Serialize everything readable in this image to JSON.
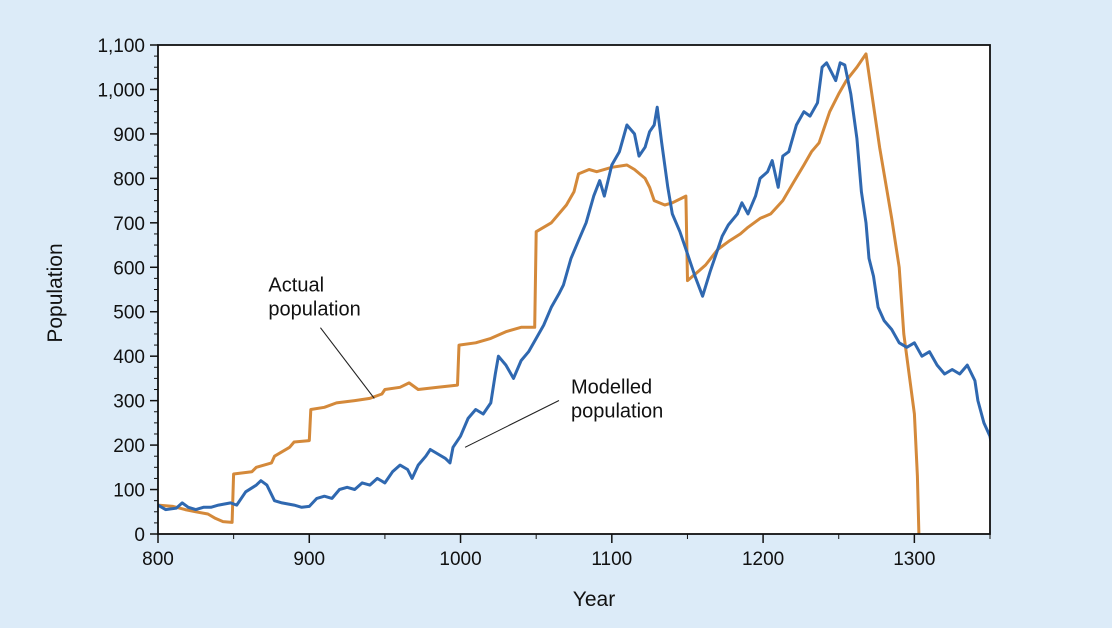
{
  "chart_data": {
    "type": "line",
    "title": "",
    "xlabel": "Year",
    "ylabel": "Population",
    "xlim": [
      800,
      1350
    ],
    "ylim": [
      0,
      1100
    ],
    "x_ticks": [
      800,
      900,
      1000,
      1100,
      1200,
      1300
    ],
    "y_ticks": [
      0,
      100,
      200,
      300,
      400,
      500,
      600,
      700,
      800,
      900,
      1000,
      1100
    ],
    "y_tick_labels": [
      "0",
      "100",
      "200",
      "300",
      "400",
      "500",
      "600",
      "700",
      "800",
      "900",
      "1,000",
      "1,100"
    ],
    "grid": false,
    "legend": "none",
    "annotations": [
      {
        "lines": [
          "Actual",
          "population"
        ],
        "series": "actual",
        "text_at": [
          873,
          545
        ],
        "points_to": [
          943,
          305
        ]
      },
      {
        "lines": [
          "Modelled",
          "population"
        ],
        "series": "modelled",
        "text_at": [
          1073,
          316
        ],
        "points_to": [
          1003,
          195
        ]
      }
    ],
    "series": [
      {
        "key": "actual",
        "color": "#d4893a",
        "points": [
          [
            800,
            65
          ],
          [
            810,
            62
          ],
          [
            818,
            55
          ],
          [
            825,
            50
          ],
          [
            833,
            45
          ],
          [
            838,
            35
          ],
          [
            843,
            28
          ],
          [
            849,
            26
          ],
          [
            850,
            135
          ],
          [
            862,
            140
          ],
          [
            865,
            150
          ],
          [
            875,
            160
          ],
          [
            877,
            175
          ],
          [
            887,
            195
          ],
          [
            890,
            207
          ],
          [
            900,
            210
          ],
          [
            901,
            280
          ],
          [
            910,
            285
          ],
          [
            918,
            295
          ],
          [
            930,
            300
          ],
          [
            940,
            305
          ],
          [
            948,
            315
          ],
          [
            950,
            325
          ],
          [
            960,
            330
          ],
          [
            966,
            340
          ],
          [
            972,
            325
          ],
          [
            985,
            330
          ],
          [
            998,
            335
          ],
          [
            999,
            425
          ],
          [
            1010,
            430
          ],
          [
            1020,
            440
          ],
          [
            1030,
            455
          ],
          [
            1040,
            465
          ],
          [
            1049,
            465
          ],
          [
            1050,
            680
          ],
          [
            1060,
            700
          ],
          [
            1070,
            740
          ],
          [
            1075,
            770
          ],
          [
            1078,
            810
          ],
          [
            1085,
            820
          ],
          [
            1090,
            815
          ],
          [
            1100,
            825
          ],
          [
            1110,
            830
          ],
          [
            1115,
            820
          ],
          [
            1122,
            800
          ],
          [
            1125,
            780
          ],
          [
            1128,
            750
          ],
          [
            1135,
            740
          ],
          [
            1140,
            745
          ],
          [
            1149,
            760
          ],
          [
            1150,
            570
          ],
          [
            1157,
            590
          ],
          [
            1162,
            605
          ],
          [
            1170,
            640
          ],
          [
            1178,
            660
          ],
          [
            1185,
            675
          ],
          [
            1190,
            690
          ],
          [
            1198,
            710
          ],
          [
            1205,
            720
          ],
          [
            1213,
            750
          ],
          [
            1220,
            790
          ],
          [
            1227,
            830
          ],
          [
            1232,
            860
          ],
          [
            1237,
            880
          ],
          [
            1244,
            950
          ],
          [
            1250,
            990
          ],
          [
            1255,
            1020
          ],
          [
            1262,
            1050
          ],
          [
            1268,
            1080
          ],
          [
            1277,
            870
          ],
          [
            1285,
            710
          ],
          [
            1290,
            600
          ],
          [
            1293,
            450
          ],
          [
            1300,
            270
          ],
          [
            1302,
            130
          ],
          [
            1303,
            0
          ]
        ]
      },
      {
        "key": "modelled",
        "color": "#2f68b0",
        "points": [
          [
            800,
            65
          ],
          [
            805,
            55
          ],
          [
            812,
            58
          ],
          [
            816,
            70
          ],
          [
            820,
            60
          ],
          [
            825,
            55
          ],
          [
            830,
            60
          ],
          [
            835,
            60
          ],
          [
            840,
            65
          ],
          [
            848,
            70
          ],
          [
            852,
            65
          ],
          [
            858,
            95
          ],
          [
            865,
            110
          ],
          [
            868,
            120
          ],
          [
            872,
            110
          ],
          [
            877,
            75
          ],
          [
            882,
            70
          ],
          [
            890,
            65
          ],
          [
            895,
            60
          ],
          [
            900,
            62
          ],
          [
            905,
            80
          ],
          [
            910,
            85
          ],
          [
            915,
            80
          ],
          [
            920,
            100
          ],
          [
            925,
            105
          ],
          [
            930,
            100
          ],
          [
            935,
            115
          ],
          [
            940,
            110
          ],
          [
            945,
            125
          ],
          [
            950,
            115
          ],
          [
            955,
            140
          ],
          [
            960,
            155
          ],
          [
            965,
            145
          ],
          [
            968,
            125
          ],
          [
            972,
            155
          ],
          [
            977,
            175
          ],
          [
            980,
            190
          ],
          [
            985,
            180
          ],
          [
            990,
            170
          ],
          [
            993,
            160
          ],
          [
            995,
            195
          ],
          [
            1000,
            220
          ],
          [
            1005,
            260
          ],
          [
            1010,
            280
          ],
          [
            1015,
            270
          ],
          [
            1020,
            295
          ],
          [
            1023,
            360
          ],
          [
            1025,
            400
          ],
          [
            1030,
            380
          ],
          [
            1035,
            350
          ],
          [
            1040,
            390
          ],
          [
            1045,
            410
          ],
          [
            1050,
            440
          ],
          [
            1055,
            470
          ],
          [
            1060,
            510
          ],
          [
            1065,
            540
          ],
          [
            1068,
            560
          ],
          [
            1073,
            620
          ],
          [
            1078,
            660
          ],
          [
            1083,
            700
          ],
          [
            1088,
            760
          ],
          [
            1092,
            795
          ],
          [
            1095,
            760
          ],
          [
            1100,
            830
          ],
          [
            1105,
            860
          ],
          [
            1110,
            920
          ],
          [
            1115,
            900
          ],
          [
            1118,
            850
          ],
          [
            1122,
            870
          ],
          [
            1125,
            905
          ],
          [
            1128,
            920
          ],
          [
            1130,
            960
          ],
          [
            1133,
            880
          ],
          [
            1137,
            780
          ],
          [
            1140,
            720
          ],
          [
            1145,
            680
          ],
          [
            1150,
            630
          ],
          [
            1155,
            580
          ],
          [
            1160,
            535
          ],
          [
            1165,
            590
          ],
          [
            1170,
            640
          ],
          [
            1173,
            670
          ],
          [
            1177,
            695
          ],
          [
            1183,
            720
          ],
          [
            1186,
            745
          ],
          [
            1190,
            720
          ],
          [
            1195,
            760
          ],
          [
            1198,
            800
          ],
          [
            1203,
            815
          ],
          [
            1206,
            840
          ],
          [
            1210,
            780
          ],
          [
            1213,
            850
          ],
          [
            1217,
            860
          ],
          [
            1222,
            920
          ],
          [
            1227,
            950
          ],
          [
            1231,
            940
          ],
          [
            1236,
            970
          ],
          [
            1239,
            1050
          ],
          [
            1242,
            1060
          ],
          [
            1245,
            1040
          ],
          [
            1248,
            1020
          ],
          [
            1251,
            1060
          ],
          [
            1254,
            1055
          ],
          [
            1258,
            990
          ],
          [
            1262,
            890
          ],
          [
            1265,
            770
          ],
          [
            1268,
            700
          ],
          [
            1270,
            620
          ],
          [
            1273,
            580
          ],
          [
            1276,
            510
          ],
          [
            1280,
            480
          ],
          [
            1285,
            460
          ],
          [
            1290,
            430
          ],
          [
            1295,
            420
          ],
          [
            1300,
            430
          ],
          [
            1305,
            400
          ],
          [
            1310,
            410
          ],
          [
            1315,
            380
          ],
          [
            1320,
            360
          ],
          [
            1325,
            370
          ],
          [
            1330,
            360
          ],
          [
            1335,
            380
          ],
          [
            1340,
            345
          ],
          [
            1342,
            300
          ],
          [
            1346,
            250
          ],
          [
            1350,
            220
          ],
          [
            1352,
            180
          ],
          [
            1355,
            200
          ]
        ]
      }
    ]
  }
}
